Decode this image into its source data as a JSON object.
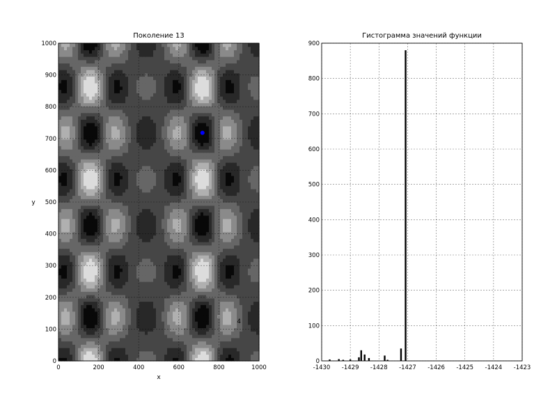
{
  "chart_data": [
    {
      "type": "contour",
      "title": "Поколение 13",
      "xlabel": "x",
      "ylabel": "y",
      "xlim": [
        0,
        1000
      ],
      "ylim": [
        0,
        1000
      ],
      "xticks": [
        0,
        200,
        400,
        600,
        800,
        1000
      ],
      "yticks": [
        0,
        100,
        200,
        300,
        400,
        500,
        600,
        700,
        800,
        900,
        1000
      ],
      "grid": true,
      "colormap": "gray",
      "levels": 7,
      "contour_labels": [
        {
          "text": "4",
          "x": 900,
          "y": 125
        }
      ],
      "points": [
        {
          "x": 718,
          "y": 718,
          "color": "#0000ff"
        }
      ]
    },
    {
      "type": "bar",
      "title": "Гистограмма значений функции",
      "xlabel": "",
      "ylabel": "",
      "xlim": [
        -1430,
        -1423
      ],
      "ylim": [
        0,
        900
      ],
      "xticks": [
        -1430,
        -1429,
        -1428,
        -1427,
        -1426,
        -1425,
        -1424,
        -1423
      ],
      "yticks": [
        0,
        100,
        200,
        300,
        400,
        500,
        600,
        700,
        800,
        900
      ],
      "grid": true,
      "bar_color": "#000000",
      "bins": [
        {
          "x": -1429.72,
          "value": 4
        },
        {
          "x": -1429.4,
          "value": 5
        },
        {
          "x": -1429.25,
          "value": 3
        },
        {
          "x": -1429.0,
          "value": 4
        },
        {
          "x": -1428.7,
          "value": 10
        },
        {
          "x": -1428.62,
          "value": 30
        },
        {
          "x": -1428.5,
          "value": 18
        },
        {
          "x": -1428.35,
          "value": 8
        },
        {
          "x": -1427.8,
          "value": 15
        },
        {
          "x": -1427.7,
          "value": 3
        },
        {
          "x": -1427.23,
          "value": 35
        },
        {
          "x": -1427.07,
          "value": 880
        }
      ]
    }
  ]
}
